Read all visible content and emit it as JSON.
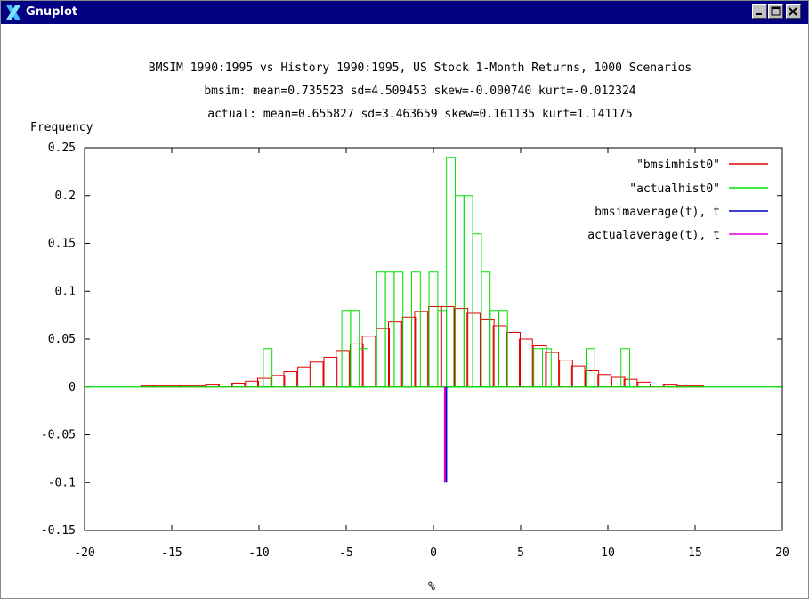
{
  "window": {
    "title": "Gnuplot",
    "icon": "x-logo-icon",
    "buttons": [
      "minimize-icon",
      "maximize-icon",
      "close-icon"
    ]
  },
  "chart_data": {
    "type": "histogram",
    "title_lines": [
      "BMSIM 1990:1995 vs History 1990:1995, US Stock 1-Month Returns, 1000 Scenarios",
      "bmsim: mean=0.735523 sd=4.509453 skew=-0.000740 kurt=-0.012324",
      "actual: mean=0.655827 sd=3.463659 skew=0.161135 kurt=1.141175"
    ],
    "ylabel": "Frequency",
    "xlabel": "%",
    "xlim": [
      -20,
      20
    ],
    "ylim": [
      -0.15,
      0.25
    ],
    "x_ticks": [
      "-20",
      "-15",
      "-10",
      "-5",
      "0",
      "5",
      "10",
      "15",
      "20"
    ],
    "y_ticks": [
      "0.25",
      "0.2",
      "0.15",
      "0.1",
      "0.05",
      "0",
      "-0.05",
      "-0.1",
      "-0.15"
    ],
    "grid": false,
    "legend_position": "top-right",
    "series": [
      {
        "name": "\"bmsimhist0\"",
        "color": "#e00000",
        "bin_width": 0.75,
        "x": [
          -16.4,
          -15.7,
          -14.9,
          -14.2,
          -13.4,
          -12.7,
          -11.9,
          -11.2,
          -10.4,
          -9.7,
          -8.9,
          -8.2,
          -7.4,
          -6.7,
          -5.9,
          -5.2,
          -4.4,
          -3.7,
          -2.9,
          -2.2,
          -1.4,
          -0.7,
          0.1,
          0.8,
          1.6,
          2.3,
          3.1,
          3.8,
          4.6,
          5.3,
          6.1,
          6.8,
          7.6,
          8.3,
          9.1,
          9.8,
          10.6,
          11.3,
          12.1,
          12.8,
          13.6,
          14.3,
          15.1
        ],
        "values": [
          0.001,
          0.001,
          0.001,
          0.001,
          0.001,
          0.002,
          0.003,
          0.004,
          0.006,
          0.009,
          0.012,
          0.016,
          0.021,
          0.026,
          0.031,
          0.038,
          0.045,
          0.053,
          0.061,
          0.068,
          0.073,
          0.079,
          0.084,
          0.084,
          0.082,
          0.077,
          0.071,
          0.064,
          0.057,
          0.05,
          0.043,
          0.036,
          0.028,
          0.022,
          0.017,
          0.013,
          0.01,
          0.008,
          0.005,
          0.003,
          0.002,
          0.001,
          0.001
        ]
      },
      {
        "name": "\"actualhist0\"",
        "color": "#00e000",
        "bin_width": 0.5,
        "x": [
          -9.5,
          -5.0,
          -4.5,
          -4.0,
          -3.0,
          -2.5,
          -2.0,
          -1.0,
          0.0,
          0.5,
          1.0,
          1.5,
          2.0,
          2.5,
          3.0,
          3.5,
          4.0,
          6.0,
          6.5,
          9.0,
          11.0
        ],
        "values": [
          0.04,
          0.08,
          0.08,
          0.04,
          0.12,
          0.12,
          0.12,
          0.12,
          0.12,
          0.08,
          0.24,
          0.2,
          0.2,
          0.16,
          0.12,
          0.08,
          0.08,
          0.04,
          0.04,
          0.04,
          0.04
        ]
      },
      {
        "name": "bmsimaverage(t), t",
        "color": "#0000c0",
        "x": [
          0.7355,
          0.7355
        ],
        "y": [
          0,
          -0.1
        ]
      },
      {
        "name": "actualaverage(t), t",
        "color": "#e000e0",
        "x": [
          0.6558,
          0.6558
        ],
        "y": [
          0,
          -0.1
        ]
      }
    ]
  }
}
